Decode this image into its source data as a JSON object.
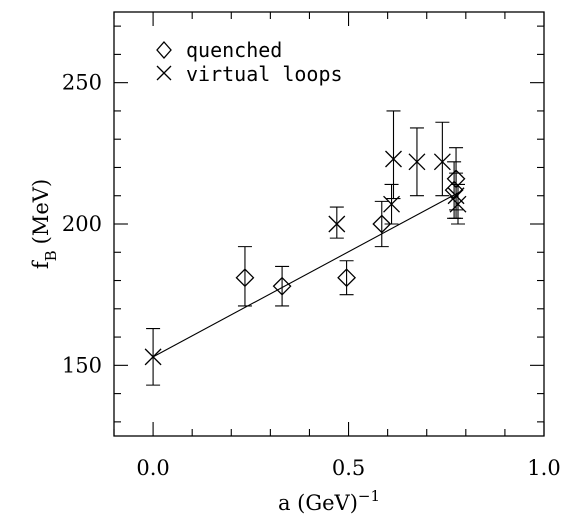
{
  "chart_data": {
    "type": "scatter",
    "xlabel": "a (GeV)",
    "xlabel_sup": "−1",
    "ylabel": "f",
    "ylabel_sub": "B",
    "ylabel_unit": "(MeV)",
    "xlim": [
      -0.1,
      1.0
    ],
    "ylim": [
      125,
      275
    ],
    "x_major_ticks": [
      0.0,
      0.5,
      1.0
    ],
    "x_tick_labels": [
      "0.0",
      "0.5",
      "1.0"
    ],
    "y_major_ticks": [
      150,
      200,
      250
    ],
    "y_tick_labels": [
      "150",
      "200",
      "250"
    ],
    "legend_position": "top-left",
    "series": [
      {
        "name": "quenched",
        "marker": "diamond",
        "points": [
          {
            "x": 0.235,
            "y": 181,
            "err_lo": 10,
            "err_hi": 11
          },
          {
            "x": 0.33,
            "y": 178,
            "err_lo": 7,
            "err_hi": 7
          },
          {
            "x": 0.495,
            "y": 181,
            "err_lo": 6,
            "err_hi": 6
          },
          {
            "x": 0.585,
            "y": 200,
            "err_lo": 8,
            "err_hi": 8
          },
          {
            "x": 0.77,
            "y": 212,
            "err_lo": 10,
            "err_hi": 10
          },
          {
            "x": 0.775,
            "y": 216,
            "err_lo": 11,
            "err_hi": 11
          }
        ]
      },
      {
        "name": "virtual loops",
        "marker": "cross",
        "points": [
          {
            "x": 0.0,
            "y": 153,
            "err_lo": 10,
            "err_hi": 10
          },
          {
            "x": 0.47,
            "y": 200,
            "err_lo": 5,
            "err_hi": 6
          },
          {
            "x": 0.61,
            "y": 207,
            "err_lo": 7,
            "err_hi": 7
          },
          {
            "x": 0.615,
            "y": 223,
            "err_lo": 14,
            "err_hi": 17
          },
          {
            "x": 0.675,
            "y": 222,
            "err_lo": 12,
            "err_hi": 12
          },
          {
            "x": 0.74,
            "y": 222,
            "err_lo": 12,
            "err_hi": 14
          },
          {
            "x": 0.775,
            "y": 210,
            "err_lo": 8,
            "err_hi": 8
          },
          {
            "x": 0.78,
            "y": 207,
            "err_lo": 7,
            "err_hi": 7
          }
        ]
      }
    ],
    "fit_line": {
      "x": [
        0.0,
        0.78
      ],
      "y": [
        153,
        211
      ]
    }
  }
}
